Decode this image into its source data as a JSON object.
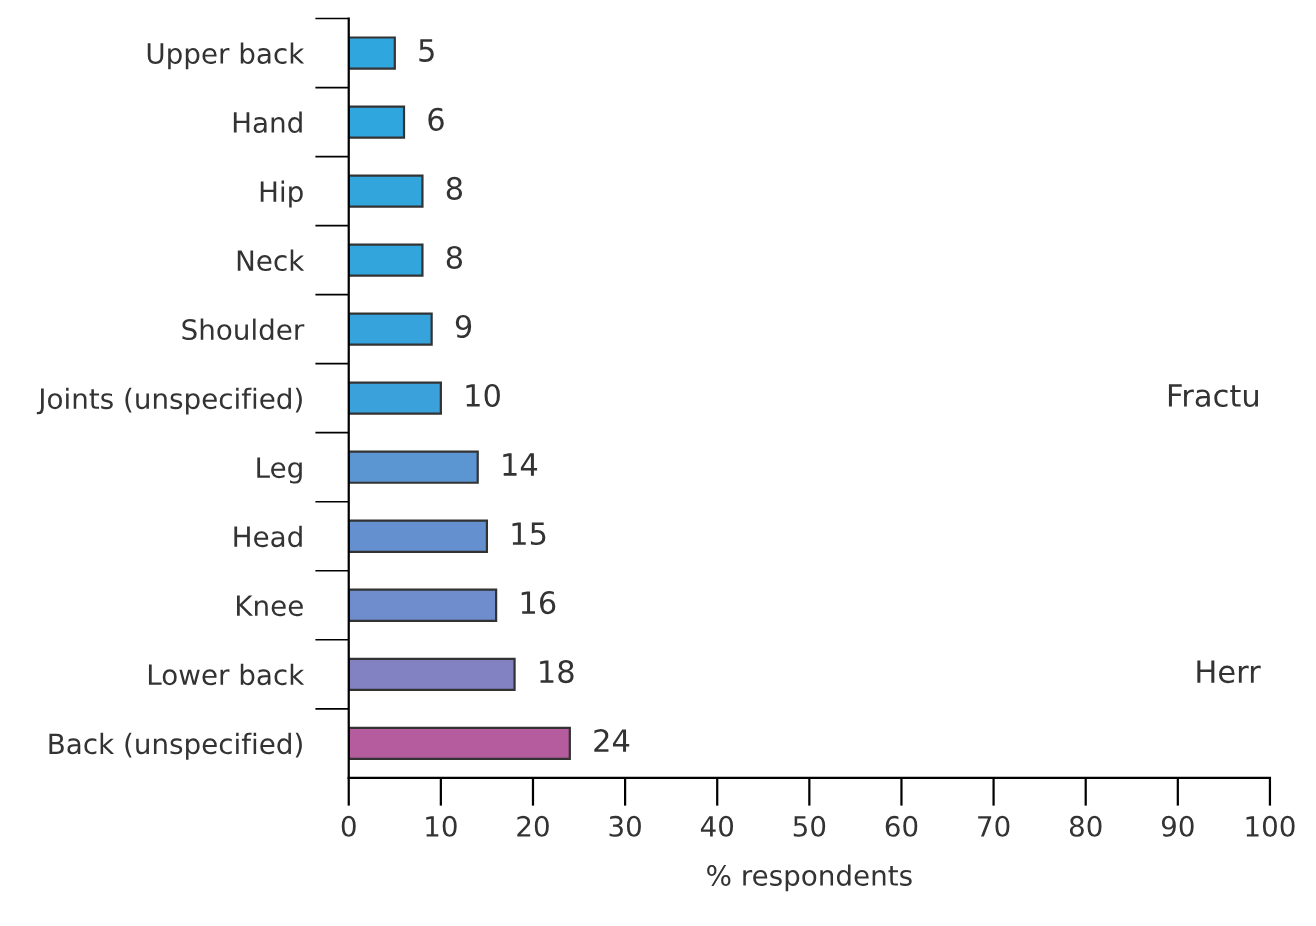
{
  "chart_data": {
    "type": "bar",
    "orientation": "horizontal",
    "xlabel": "% respondents",
    "categories": [
      "Upper back",
      "Hand",
      "Hip",
      "Neck",
      "Shoulder",
      "Joints (unspecified)",
      "Leg",
      "Head",
      "Knee",
      "Lower back",
      "Back (unspecified)"
    ],
    "values": [
      5,
      6,
      8,
      8,
      9,
      10,
      14,
      15,
      16,
      18,
      24
    ],
    "colors": [
      "#2fa7de",
      "#2fa7de",
      "#33a5dd",
      "#33a5dd",
      "#37a3dc",
      "#3aa1db",
      "#5b95d2",
      "#6590cf",
      "#6f8ccc",
      "#8282c2",
      "#b45c9e"
    ],
    "xlim": [
      0,
      100
    ],
    "xticks": [
      0,
      10,
      20,
      30,
      40,
      50,
      60,
      70,
      80,
      90,
      100
    ],
    "data_labels": true,
    "grid": false,
    "annotations": [
      "Fractu",
      "Herr"
    ]
  }
}
